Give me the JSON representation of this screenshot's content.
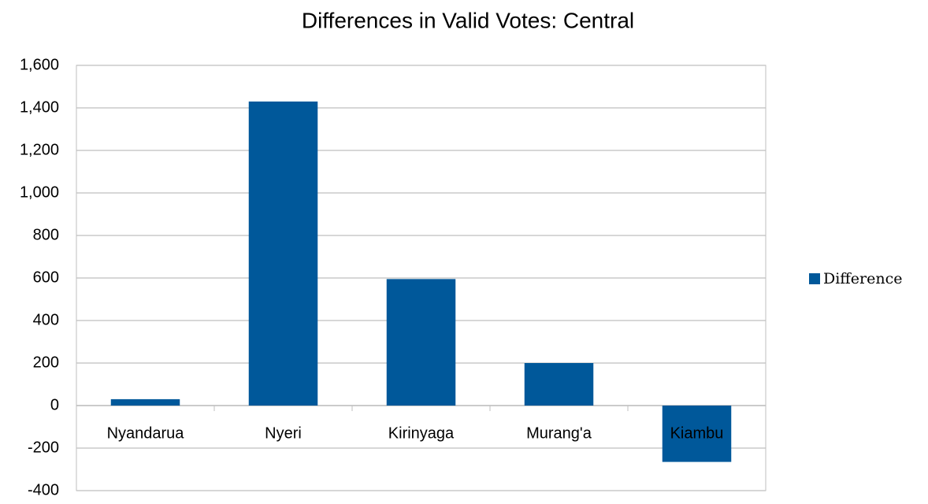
{
  "chart_data": {
    "type": "bar",
    "title": "Differences in Valid Votes: Central",
    "categories": [
      "Nyandarua",
      "Nyeri",
      "Kirinyaga",
      "Murang'a",
      "Kiambu"
    ],
    "series": [
      {
        "name": "Difference",
        "color": "#00589a",
        "values": [
          30,
          1430,
          595,
          200,
          -265
        ]
      }
    ],
    "ylim": [
      -400,
      1600
    ],
    "yticks": [
      -400,
      -200,
      0,
      200,
      400,
      600,
      800,
      {
        "value": 1000,
        "label": "1,000"
      },
      {
        "value": 1200,
        "label": "1,200"
      },
      {
        "value": 1400,
        "label": "1,400"
      },
      {
        "value": 1600,
        "label": "1,600"
      }
    ],
    "grid": true,
    "legend": "right"
  }
}
